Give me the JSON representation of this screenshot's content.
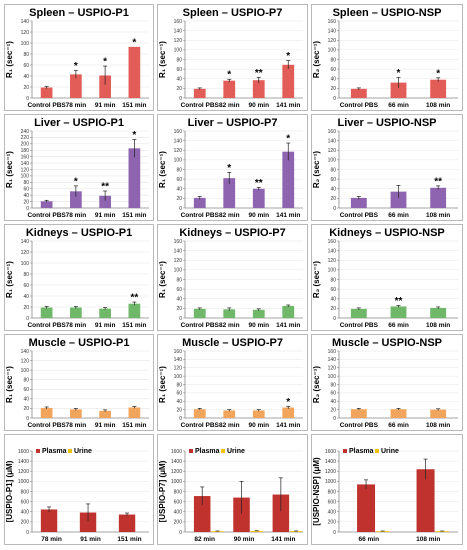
{
  "chart_data": [
    {
      "type": "bar",
      "title": "Spleen – USPIO-P1",
      "ylabel": "R₁ (sec⁻¹)",
      "ylim": [
        0,
        140
      ],
      "yticks": [
        0,
        20,
        40,
        60,
        80,
        100,
        120,
        140
      ],
      "categories": [
        "Control PBS",
        "78 min",
        "91 min",
        "151 min"
      ],
      "values": [
        19,
        43,
        41,
        93
      ],
      "errors": [
        2,
        7,
        17,
        0
      ],
      "sig": [
        "",
        "*",
        "*",
        "*"
      ],
      "color": "#e35d58"
    },
    {
      "type": "bar",
      "title": "Spleen – USPIO-P7",
      "ylabel": "R₁ (sec⁻¹)",
      "ylim": [
        0,
        160
      ],
      "yticks": [
        0,
        20,
        40,
        60,
        80,
        100,
        120,
        140,
        160
      ],
      "categories": [
        "Control PBS",
        "82 min",
        "90 min",
        "141 min"
      ],
      "values": [
        19,
        36,
        37,
        69
      ],
      "errors": [
        2,
        3,
        6,
        9
      ],
      "sig": [
        "",
        "*",
        "**",
        "*"
      ],
      "color": "#e35d58"
    },
    {
      "type": "bar",
      "title": "Spleen – USPIO-NSP",
      "ylabel": "R₂ (sec⁻¹)",
      "ylim": [
        0,
        160
      ],
      "yticks": [
        0,
        20,
        40,
        60,
        80,
        100,
        120,
        140,
        160
      ],
      "categories": [
        "Control PBS",
        "66 min",
        "108 min"
      ],
      "values": [
        19,
        32,
        38
      ],
      "errors": [
        2,
        11,
        4
      ],
      "sig": [
        "",
        "*",
        "*"
      ],
      "color": "#e35d58"
    },
    {
      "type": "bar",
      "title": "Liver – USPIO-P1",
      "ylabel": "R₁ (sec⁻¹)",
      "ylim": [
        0,
        240
      ],
      "yticks": [
        0,
        20,
        40,
        60,
        80,
        100,
        120,
        140,
        160,
        180,
        200,
        220,
        240
      ],
      "categories": [
        "Control PBS",
        "78 min",
        "91 min",
        "151 min"
      ],
      "values": [
        21,
        52,
        38,
        186
      ],
      "errors": [
        3,
        17,
        15,
        28
      ],
      "sig": [
        "",
        "*",
        "**",
        "*"
      ],
      "color": "#8e64b0"
    },
    {
      "type": "bar",
      "title": "Liver – USPIO-P7",
      "ylabel": "R₁ (sec⁻¹)",
      "ylim": [
        0,
        160
      ],
      "yticks": [
        0,
        20,
        40,
        60,
        80,
        100,
        120,
        140,
        160
      ],
      "categories": [
        "Control PBS",
        "82 min",
        "90 min",
        "141 min"
      ],
      "values": [
        21,
        62,
        40,
        117
      ],
      "errors": [
        3,
        12,
        3,
        18
      ],
      "sig": [
        "",
        "*",
        "**",
        "*"
      ],
      "color": "#8e64b0"
    },
    {
      "type": "bar",
      "title": "Liver – USPIO-NSP",
      "ylabel": "R₂ (sec⁻¹)",
      "ylim": [
        0,
        160
      ],
      "yticks": [
        0,
        20,
        40,
        60,
        80,
        100,
        120,
        140,
        160
      ],
      "categories": [
        "Control PBS",
        "66 min",
        "108 min"
      ],
      "values": [
        21,
        34,
        42
      ],
      "errors": [
        3,
        13,
        4
      ],
      "sig": [
        "",
        "",
        "**"
      ],
      "color": "#8e64b0"
    },
    {
      "type": "bar",
      "title": "Kidneys – USPIO-P1",
      "ylabel": "R₁ (sec⁻¹)",
      "ylim": [
        0,
        140
      ],
      "yticks": [
        0,
        20,
        40,
        60,
        80,
        100,
        120,
        140
      ],
      "categories": [
        "Control PBS",
        "78 min",
        "91 min",
        "151 min"
      ],
      "values": [
        19,
        19,
        17,
        26
      ],
      "errors": [
        2,
        2,
        2,
        3
      ],
      "sig": [
        "",
        "",
        "",
        "**"
      ],
      "color": "#6fb86a"
    },
    {
      "type": "bar",
      "title": "Kidneys – USPIO-P7",
      "ylabel": "R₁ (sec⁻¹)",
      "ylim": [
        0,
        160
      ],
      "yticks": [
        0,
        20,
        40,
        60,
        80,
        100,
        120,
        140,
        160
      ],
      "categories": [
        "Control PBS",
        "82 min",
        "90 min",
        "141 min"
      ],
      "values": [
        19,
        18,
        17,
        25
      ],
      "errors": [
        2,
        3,
        2,
        2
      ],
      "sig": [
        "",
        "",
        "",
        ""
      ],
      "color": "#6fb86a"
    },
    {
      "type": "bar",
      "title": "Kidneys – USPIO-NSP",
      "ylabel": "R₂ (sec⁻¹)",
      "ylim": [
        0,
        160
      ],
      "yticks": [
        0,
        20,
        40,
        60,
        80,
        100,
        120,
        140,
        160
      ],
      "categories": [
        "Control PBS",
        "66 min",
        "108 min"
      ],
      "values": [
        19,
        24,
        21
      ],
      "errors": [
        2,
        2,
        2
      ],
      "sig": [
        "",
        "**",
        ""
      ],
      "color": "#6fb86a"
    },
    {
      "type": "bar",
      "title": "Muscle – USPIO-P1",
      "ylabel": "R₁ (sec⁻¹)",
      "ylim": [
        0,
        140
      ],
      "yticks": [
        0,
        20,
        40,
        60,
        80,
        100,
        120,
        140
      ],
      "categories": [
        "Control PBS",
        "78 min",
        "91 min",
        "151 min"
      ],
      "values": [
        21,
        18,
        15,
        22
      ],
      "errors": [
        2,
        2,
        2,
        2
      ],
      "sig": [
        "",
        "",
        "",
        ""
      ],
      "color": "#f0a45c"
    },
    {
      "type": "bar",
      "title": "Muscle – USPIO-P7",
      "ylabel": "R₁ (sec⁻¹)",
      "ylim": [
        0,
        160
      ],
      "yticks": [
        0,
        20,
        40,
        60,
        80,
        100,
        120,
        140,
        160
      ],
      "categories": [
        "Control PBS",
        "82 min",
        "90 min",
        "141 min"
      ],
      "values": [
        21,
        18,
        18,
        25
      ],
      "errors": [
        2,
        2,
        2,
        3
      ],
      "sig": [
        "",
        "",
        "",
        "*"
      ],
      "color": "#f0a45c"
    },
    {
      "type": "bar",
      "title": "Muscle – USPIO-NSP",
      "ylabel": "R₂ (sec⁻¹)",
      "ylim": [
        0,
        160
      ],
      "yticks": [
        0,
        20,
        40,
        60,
        80,
        100,
        120,
        140,
        160
      ],
      "categories": [
        "Control PBS",
        "66 min",
        "108 min"
      ],
      "values": [
        21,
        21,
        20
      ],
      "errors": [
        2,
        2,
        2
      ],
      "sig": [
        "",
        "",
        ""
      ],
      "color": "#f0a45c"
    },
    {
      "type": "bar",
      "title": "",
      "ylabel": "[USPIO-P1] (μM)",
      "ylim": [
        0,
        1600
      ],
      "yticks": [
        0,
        200,
        400,
        600,
        800,
        1000,
        1200,
        1400,
        1600
      ],
      "categories": [
        "78 min",
        "91 min",
        "151 min"
      ],
      "legend": "top-left",
      "series": [
        {
          "name": "Plasma",
          "values": [
            445,
            385,
            345
          ],
          "errors": [
            50,
            170,
            30
          ],
          "color": "#c0322e"
        },
        {
          "name": "Urine",
          "values": [
            0,
            0,
            0
          ],
          "errors": [
            0,
            0,
            0
          ],
          "color": "#f2c200"
        }
      ]
    },
    {
      "type": "bar",
      "title": "",
      "ylabel": "[USPIO-P7] (μM)",
      "ylim": [
        0,
        1600
      ],
      "yticks": [
        0,
        200,
        400,
        600,
        800,
        1000,
        1200,
        1400,
        1600
      ],
      "categories": [
        "82 min",
        "90 min",
        "141 min"
      ],
      "legend": "top-left",
      "series": [
        {
          "name": "Plasma",
          "values": [
            710,
            680,
            740
          ],
          "errors": [
            180,
            320,
            330
          ],
          "color": "#c0322e"
        },
        {
          "name": "Urine",
          "values": [
            15,
            20,
            15
          ],
          "errors": [
            5,
            5,
            5
          ],
          "color": "#f2c200"
        }
      ]
    },
    {
      "type": "bar",
      "title": "",
      "ylabel": "[USPIO-NSP] (μM)",
      "ylim": [
        0,
        1600
      ],
      "yticks": [
        0,
        200,
        400,
        600,
        800,
        1000,
        1200,
        1400,
        1600
      ],
      "categories": [
        "66 min",
        "108 min"
      ],
      "legend": "top-left",
      "series": [
        {
          "name": "Plasma",
          "values": [
            940,
            1240
          ],
          "errors": [
            90,
            200
          ],
          "color": "#c0322e"
        },
        {
          "name": "Urine",
          "values": [
            15,
            15
          ],
          "errors": [
            5,
            5
          ],
          "color": "#f2c200"
        }
      ]
    }
  ]
}
